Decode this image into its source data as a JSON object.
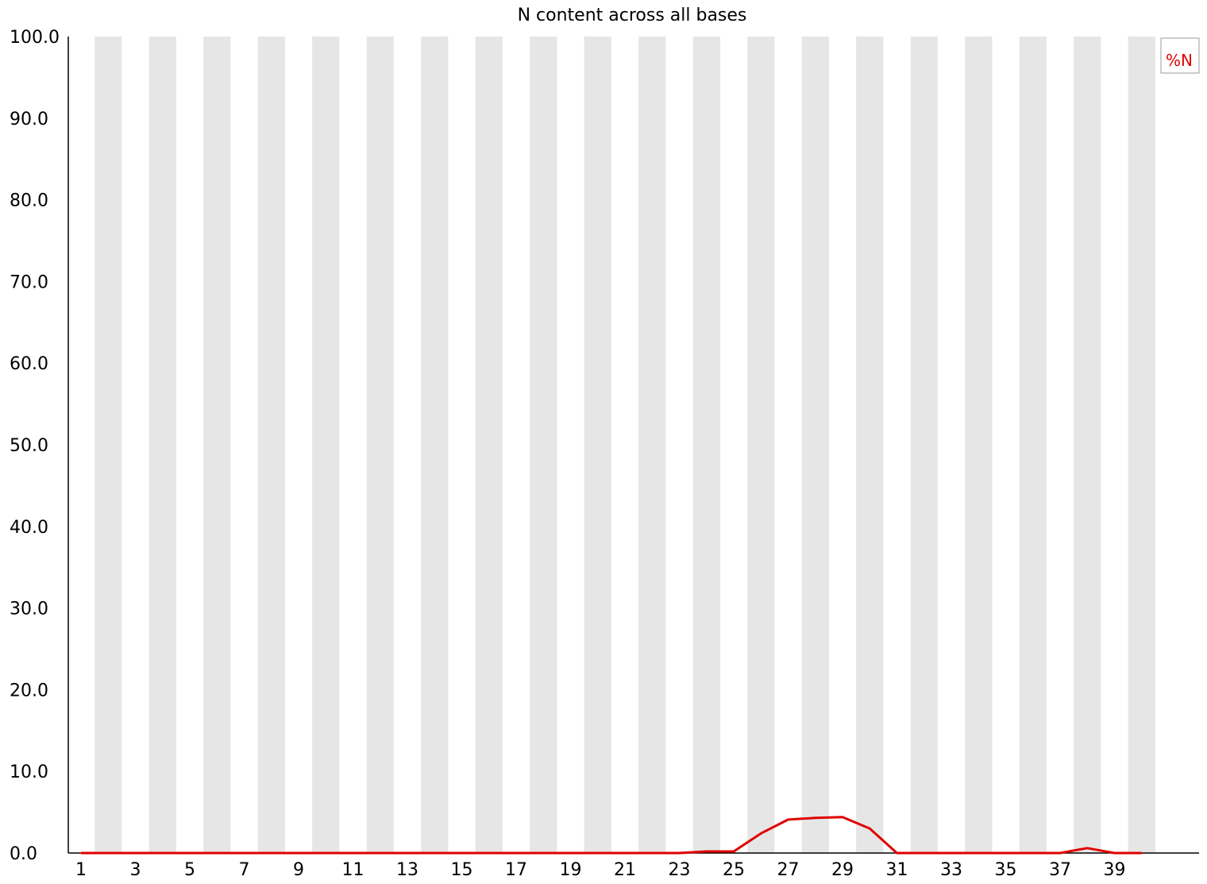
{
  "chart_data": {
    "type": "line",
    "title": "N content across all bases",
    "xlabel": "",
    "ylabel": "",
    "x": [
      1,
      2,
      3,
      4,
      5,
      6,
      7,
      8,
      9,
      10,
      11,
      12,
      13,
      14,
      15,
      16,
      17,
      18,
      19,
      20,
      21,
      22,
      23,
      24,
      25,
      26,
      27,
      28,
      29,
      30,
      31,
      32,
      33,
      34,
      35,
      36,
      37,
      38,
      39,
      40
    ],
    "x_tick_labels": [
      "1",
      "3",
      "5",
      "7",
      "9",
      "11",
      "13",
      "15",
      "17",
      "19",
      "21",
      "23",
      "25",
      "27",
      "29",
      "31",
      "33",
      "35",
      "37",
      "39"
    ],
    "y_tick_labels": [
      "0.0",
      "10.0",
      "20.0",
      "30.0",
      "40.0",
      "50.0",
      "60.0",
      "70.0",
      "80.0",
      "90.0",
      "100.0"
    ],
    "ylim": [
      0,
      100
    ],
    "grid": "alternating vertical bands",
    "band_color": "#e6e6e6",
    "series": [
      {
        "name": "%N",
        "color": "#e00000",
        "values": [
          0,
          0,
          0,
          0,
          0,
          0,
          0,
          0,
          0,
          0,
          0,
          0,
          0,
          0,
          0,
          0,
          0,
          0,
          0,
          0,
          0,
          0,
          0,
          0.2,
          0.2,
          2.4,
          4.1,
          4.3,
          4.4,
          3.0,
          0,
          0,
          0,
          0,
          0,
          0,
          0,
          0.6,
          0,
          0
        ]
      }
    ],
    "legend": {
      "position": "top-right"
    }
  }
}
